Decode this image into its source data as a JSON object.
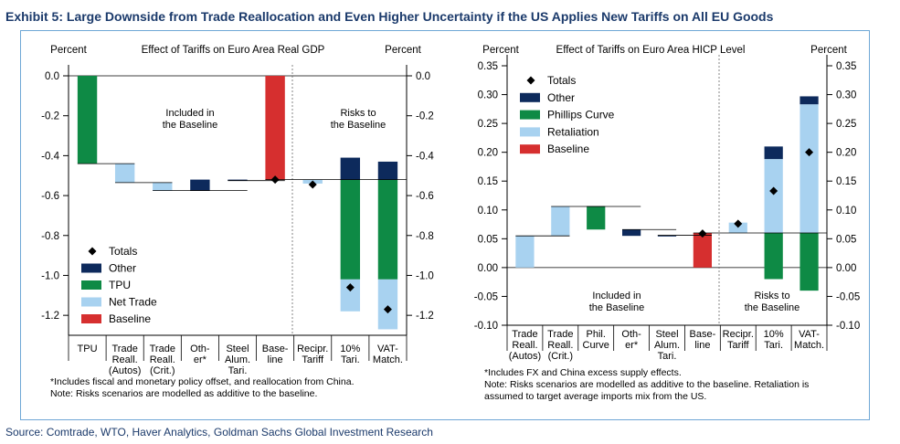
{
  "exhibit_title": "Exhibit 5: Large Downside from Trade Reallocation and Even Higher Uncertainty if the US Applies New Tariffs on All EU Goods",
  "source": "Source: Comtrade, WTO, Haver Analytics, Goldman Sachs Global Investment Research",
  "colors": {
    "other": "#0d2a5c",
    "tpu": "#0e8a45",
    "phillips": "#0e8a45",
    "nettrade": "#a8d2f0",
    "retaliation": "#a8d2f0",
    "baseline": "#d62f2f",
    "totals": "#000000",
    "frame": "#6fa7d6"
  },
  "chart_data": [
    {
      "type": "bar",
      "title": "Effect of Tariffs on Euro Area Real GDP",
      "ylabel_left": "Percent",
      "ylabel_right": "Percent",
      "ylim": [
        -1.3,
        0.0
      ],
      "yticks": [
        "0.0",
        "-0.2",
        "-0.4",
        "-0.6",
        "-0.8",
        "-1.0",
        "-1.2"
      ],
      "categories": [
        "TPU",
        "Trade Reall. (Autos)",
        "Trade Reall. (Crit.)",
        "Oth-er*",
        "Steel Alum. Tari.",
        "Base-line",
        "Recipr. Tariff",
        "10% Tari.",
        "VAT-Match."
      ],
      "category_lines": [
        [
          "TPU"
        ],
        [
          "Trade",
          "Reall.",
          "(Autos)"
        ],
        [
          "Trade",
          "Reall.",
          "(Crit.)"
        ],
        [
          "Oth-",
          "er*"
        ],
        [
          "Steel",
          "Alum.",
          "Tari."
        ],
        [
          "Base-",
          "line"
        ],
        [
          "Recipr.",
          "Tariff"
        ],
        [
          "10%",
          "Tari."
        ],
        [
          "VAT-",
          "Match."
        ]
      ],
      "series": [
        {
          "name": "Other",
          "segments": [
            [],
            [],
            [],
            [
              -0.52,
              -0.575
            ],
            [
              -0.52,
              -0.525
            ],
            [],
            [],
            [
              -0.41,
              -0.52
            ],
            [
              -0.43,
              -0.52
            ]
          ]
        },
        {
          "name": "TPU",
          "segments": [
            [
              0.0,
              -0.44
            ],
            [],
            [],
            [],
            [],
            [],
            [],
            [
              -0.52,
              -1.02
            ],
            [
              -0.52,
              -1.02
            ]
          ]
        },
        {
          "name": "Net Trade",
          "segments": [
            [],
            [
              -0.44,
              -0.535
            ],
            [
              -0.535,
              -0.575
            ],
            [],
            [],
            [],
            [
              -0.52,
              -0.54
            ],
            [
              -1.02,
              -1.18
            ],
            [
              -1.02,
              -1.27
            ]
          ]
        },
        {
          "name": "Baseline",
          "segments": [
            [],
            [],
            [],
            [],
            [],
            [
              0.0,
              -0.52
            ],
            [],
            [],
            []
          ]
        }
      ],
      "totals": [
        null,
        null,
        null,
        null,
        null,
        -0.52,
        -0.545,
        -1.06,
        -1.17
      ],
      "legend": [
        "Totals",
        "Other",
        "TPU",
        "Net Trade",
        "Baseline"
      ],
      "legend_position": "bottom-left",
      "annotations": [
        "Included in",
        "the Baseline",
        "Risks to",
        "the Baseline"
      ],
      "footnotes": [
        "*Includes fiscal and monetary policy offset, and reallocation from China.",
        "Note: Risks scenarios are modelled as additive to the baseline."
      ]
    },
    {
      "type": "bar",
      "title": "Effect of Tariffs on Euro Area HICP Level",
      "ylabel_left": "Percent",
      "ylabel_right": "Percent",
      "ylim": [
        -0.1,
        0.35
      ],
      "yticks": [
        "0.35",
        "0.30",
        "0.25",
        "0.20",
        "0.15",
        "0.10",
        "0.05",
        "0.00",
        "-0.05",
        "-0.10"
      ],
      "categories": [
        "Trade Reall. (Autos)",
        "Trade Reall. (Crit.)",
        "Phil. Curve",
        "Oth-er*",
        "Steel Alum. Tari.",
        "Base-line",
        "Recipr. Tariff",
        "10% Tari.",
        "VAT-Match."
      ],
      "category_lines": [
        [
          "Trade",
          "Reall.",
          "(Autos)"
        ],
        [
          "Trade",
          "Reall.",
          "(Crit.)"
        ],
        [
          "Phil.",
          "Curve"
        ],
        [
          "Oth-",
          "er*"
        ],
        [
          "Steel",
          "Alum.",
          "Tari."
        ],
        [
          "Base-",
          "line"
        ],
        [
          "Recipr.",
          "Tariff"
        ],
        [
          "10%",
          "Tari."
        ],
        [
          "VAT-",
          "Match."
        ]
      ],
      "series": [
        {
          "name": "Other",
          "segments": [
            [],
            [],
            [],
            [
              0.066,
              0.055
            ],
            [
              0.056,
              0.054
            ],
            [],
            [],
            [
              0.21,
              0.188
            ],
            [
              0.297,
              0.283
            ]
          ]
        },
        {
          "name": "Phillips Curve",
          "segments": [
            [],
            [],
            [
              0.106,
              0.066
            ],
            [],
            [],
            [],
            [],
            [
              0.06,
              -0.02
            ],
            [
              0.06,
              -0.04
            ]
          ]
        },
        {
          "name": "Retaliation",
          "segments": [
            [
              0.0,
              0.055
            ],
            [
              0.055,
              0.106
            ],
            [],
            [],
            [],
            [],
            [
              0.06,
              0.078
            ],
            [
              0.06,
              0.188
            ],
            [
              0.06,
              0.283
            ]
          ]
        },
        {
          "name": "Baseline",
          "segments": [
            [],
            [],
            [],
            [],
            [],
            [
              0.0,
              0.06
            ],
            [],
            [],
            []
          ]
        }
      ],
      "totals": [
        null,
        null,
        null,
        null,
        null,
        0.059,
        0.076,
        0.133,
        0.2
      ],
      "legend": [
        "Totals",
        "Other",
        "Phillips Curve",
        "Retaliation",
        "Baseline"
      ],
      "legend_position": "top-left",
      "annotations": [
        "Included in",
        "the Baseline",
        "Risks to",
        "the Baseline"
      ],
      "footnotes": [
        "*Includes FX and China excess supply effects.",
        "Note: Risks scenarios are modelled as additive to the baseline. Retaliation is",
        "assumed to target average imports mix from the US."
      ]
    }
  ]
}
